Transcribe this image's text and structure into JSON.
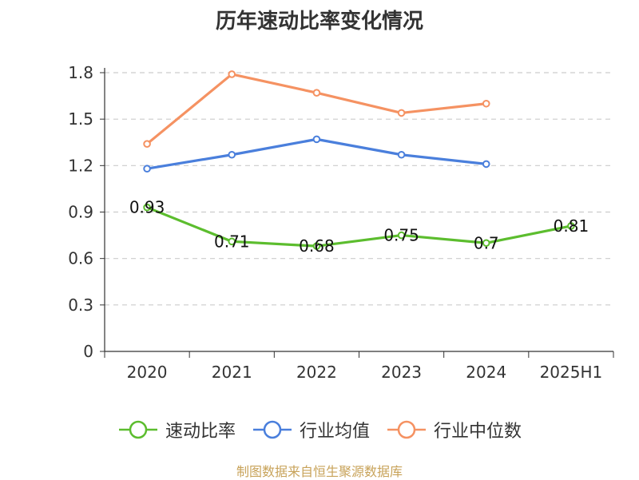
{
  "chart_data": {
    "type": "line",
    "title": "历年速动比率变化情况",
    "categories": [
      "2020",
      "2021",
      "2022",
      "2023",
      "2024",
      "2025H1"
    ],
    "ylim": [
      0,
      1.8
    ],
    "yticks": [
      "0",
      "0.3",
      "0.6",
      "0.9",
      "1.2",
      "1.5",
      "1.8"
    ],
    "grid": true,
    "legend_position": "bottom",
    "series": [
      {
        "name": "速动比率",
        "color": "#5cbd2e",
        "values": [
          0.93,
          0.71,
          0.68,
          0.75,
          0.7,
          0.81
        ],
        "labels": [
          "0.93",
          "0.71",
          "0.68",
          "0.75",
          "0.7",
          "0.81"
        ],
        "show_labels": true
      },
      {
        "name": "行业均值",
        "color": "#4a7fdc",
        "values": [
          1.18,
          1.27,
          1.37,
          1.27,
          1.21,
          null
        ],
        "show_labels": false
      },
      {
        "name": "行业中位数",
        "color": "#f59262",
        "values": [
          1.34,
          1.79,
          1.67,
          1.54,
          1.6,
          null
        ],
        "show_labels": false
      }
    ]
  },
  "footer": "制图数据来自恒生聚源数据库"
}
